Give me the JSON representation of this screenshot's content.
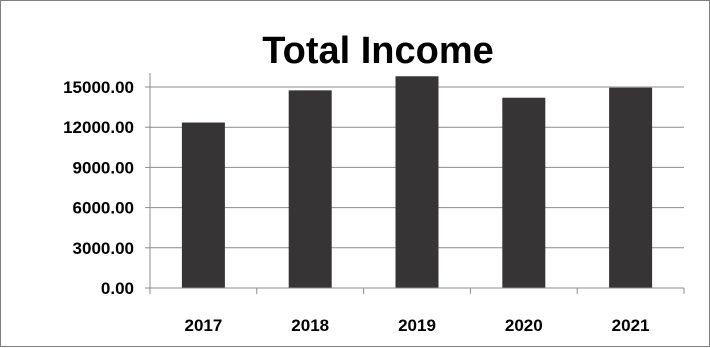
{
  "chart_data": {
    "type": "bar",
    "title": "Total Income",
    "xlabel": "",
    "ylabel": "",
    "categories": [
      "2017",
      "2018",
      "2019",
      "2020",
      "2021"
    ],
    "values": [
      12350,
      14750,
      15800,
      14200,
      14950
    ],
    "y_tick_labels": [
      "0.00",
      "3000.00",
      "6000.00",
      "9000.00",
      "12000.00",
      "15000.00"
    ],
    "y_ticks": [
      0,
      3000,
      6000,
      9000,
      12000,
      15000
    ],
    "ylim": [
      0,
      15800
    ],
    "grid": true,
    "legend": "none",
    "colors": {
      "bar": "#363435",
      "grid": "#8c8c8c",
      "axis": "#8c8c8c"
    }
  }
}
